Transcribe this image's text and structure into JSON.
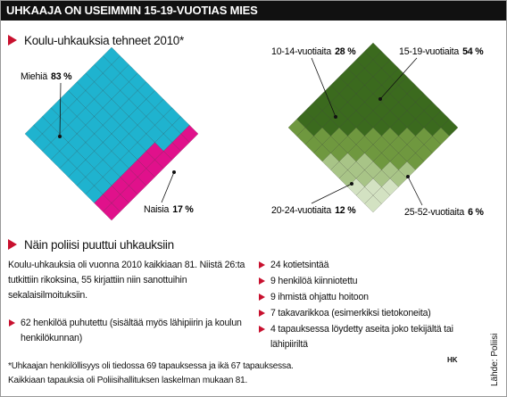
{
  "header": {
    "title": "UHKAAJA ON USEIMMIN 15-19-VUOTIAS MIES"
  },
  "section1": {
    "title": "Koulu-uhkauksia tehneet 2010*"
  },
  "chart_data": [
    {
      "type": "waffle",
      "categories": [
        "Miehiä",
        "Naisia"
      ],
      "values": [
        83,
        17
      ],
      "value_labels": [
        "83 %",
        "17 %"
      ],
      "colors": [
        "#1fb3cf",
        "#e0118b"
      ]
    },
    {
      "type": "waffle",
      "categories": [
        "15-19-vuotiaita",
        "10-14-vuotiaita",
        "20-24-vuotiaita",
        "25-52-vuotiaita"
      ],
      "values": [
        54,
        28,
        12,
        6
      ],
      "value_labels": [
        "54 %",
        "28 %",
        "12 %",
        "6 %"
      ],
      "colors": [
        "#3b6a1e",
        "#6f983f",
        "#a8c487",
        "#d3e2c2"
      ]
    }
  ],
  "section2": {
    "title": "Näin poliisi puuttui uhkauksiin",
    "text": "Koulu-uhkauksia oli vuonna 2010 kaikkiaan 81. Niistä 26:ta tutkittiin rikoksina, 55 kirjattiin niin sanottuihin sekalaisilmoituksiin.",
    "bullets_left": [
      "62 henkilöä puhutettu (sisältää myös lähipiirin ja koulun henkilökunnan)"
    ],
    "bullets_right": [
      "24 kotietsintää",
      "9 henkilöä kiinniotettu",
      "9 ihmistä ohjattu hoitoon",
      "7 takavarikkoa (esimerkiksi tietokoneita)",
      "4 tapauksessa löydetty aseita joko tekijältä tai lähipiiriltä"
    ]
  },
  "footnote": [
    "*Uhkaajan henkilöllisyys oli tiedossa 69 tapauksessa ja ikä 67 tapauksessa.",
    "Kaikkiaan tapauksia oli Poliisihallituksen laskelman mukaan 81."
  ],
  "logo": "HK",
  "source": "Lähde: Poliisi"
}
